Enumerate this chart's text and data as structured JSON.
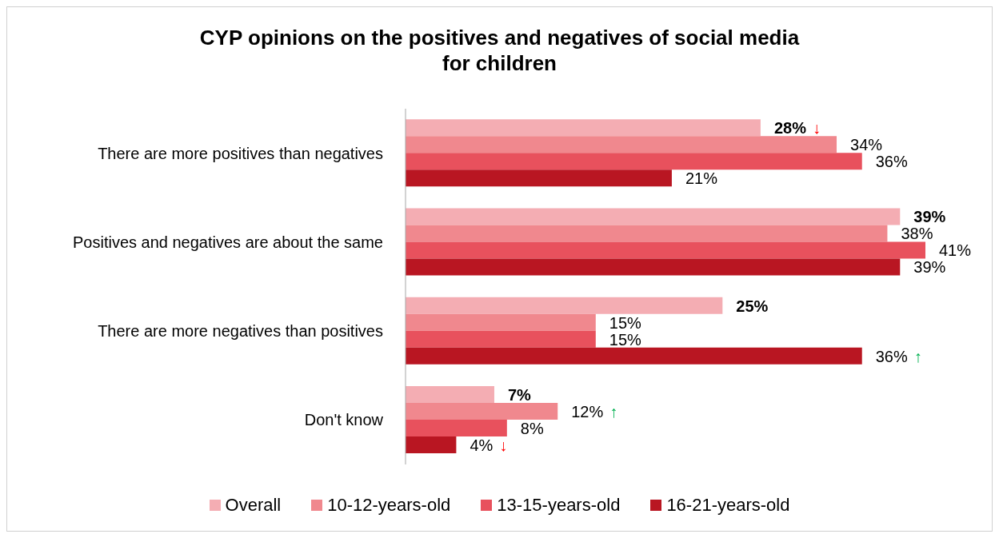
{
  "chart_data": {
    "type": "bar",
    "orientation": "horizontal",
    "title": "CYP opinions on the positives and negatives of social media for children",
    "categories": [
      "There are more positives than negatives",
      "Positives and negatives are about the same",
      "There are more negatives than positives",
      "Don't know"
    ],
    "series": [
      {
        "name": "Overall",
        "color": "#f4adb3",
        "values": [
          28,
          39,
          25,
          7
        ],
        "value_labels": [
          "28% ↓",
          "39%",
          "25%",
          "7%"
        ]
      },
      {
        "name": "10-12-years-old",
        "color": "#f0888e",
        "values": [
          34,
          38,
          15,
          12
        ],
        "value_labels": [
          "34%",
          "38%",
          "15%",
          "12% ↑"
        ]
      },
      {
        "name": "13-15-years-old",
        "color": "#e8515d",
        "values": [
          36,
          41,
          15,
          8
        ],
        "value_labels": [
          "36%",
          "41%",
          "15%",
          "8%"
        ]
      },
      {
        "name": "16-21-years-old",
        "color": "#b91622",
        "values": [
          21,
          39,
          36,
          4
        ],
        "value_labels": [
          "21%",
          "39%",
          "36% ↑",
          "4% ↓"
        ]
      }
    ],
    "legend": "bottom"
  }
}
